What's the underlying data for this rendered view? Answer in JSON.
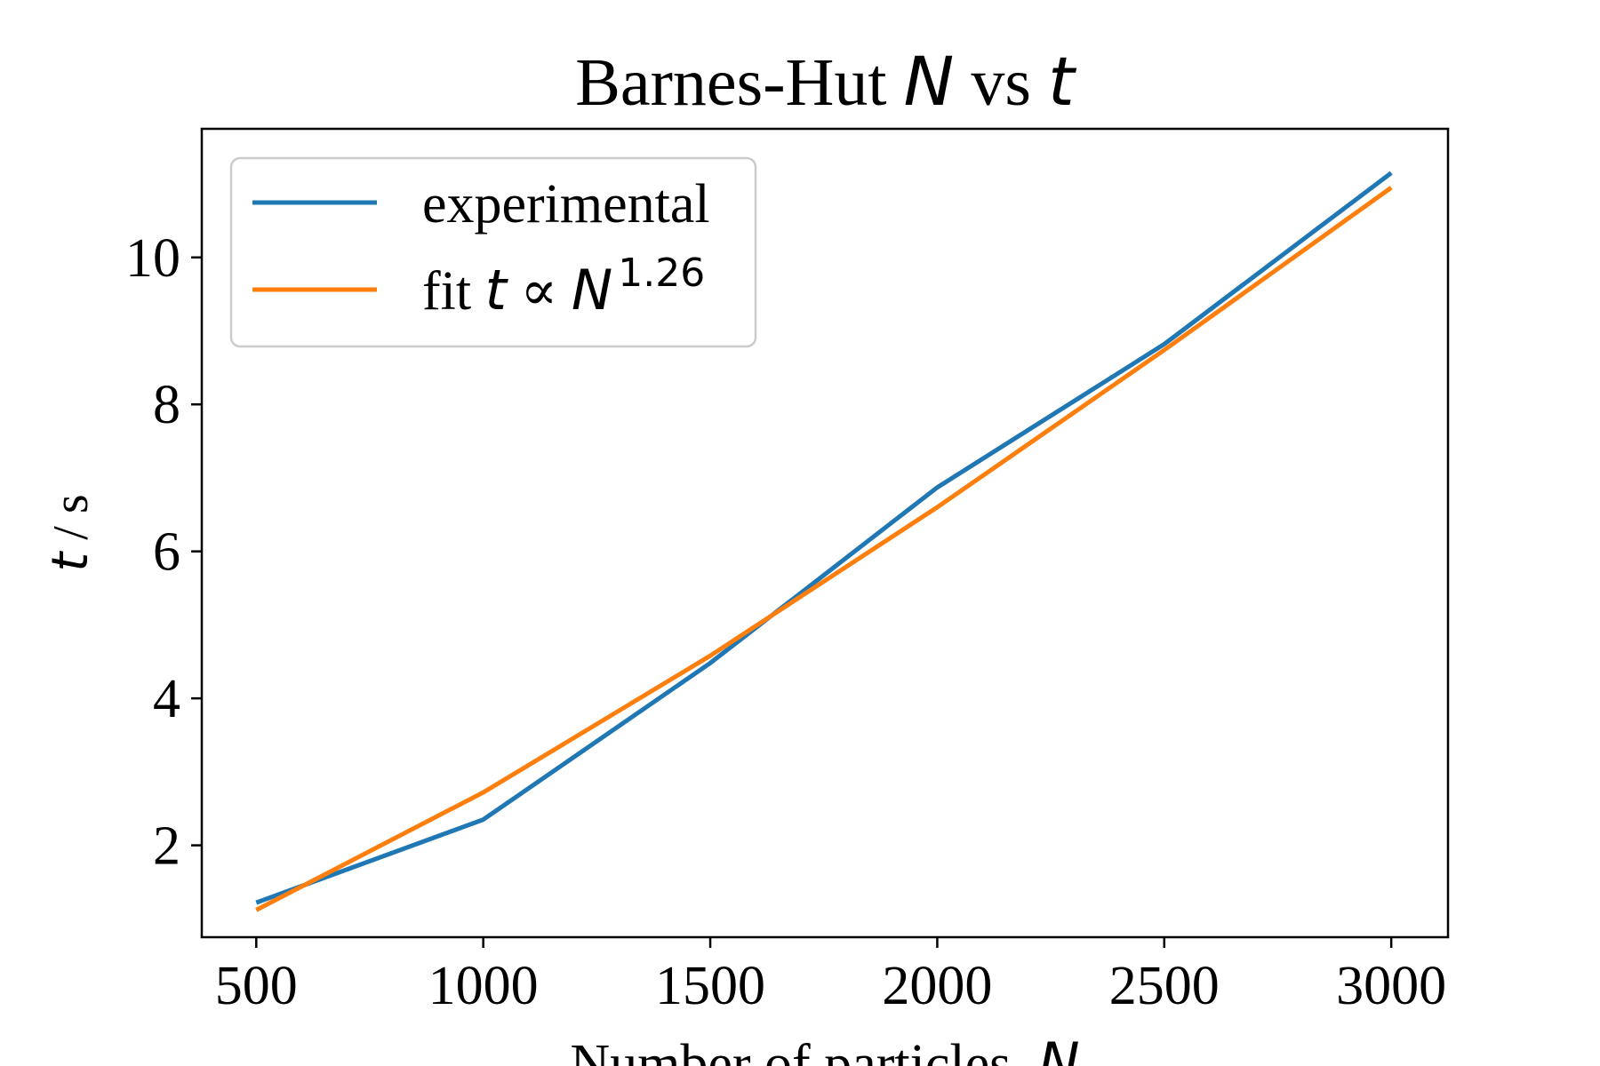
{
  "chart_data": {
    "type": "line",
    "title": {
      "prefix": "Barnes-Hut ",
      "sym1": "N",
      "mid": " vs ",
      "sym2": "t"
    },
    "xlabel": {
      "text": "Number of particles, ",
      "sym": "N"
    },
    "ylabel": {
      "sym": "t",
      "unit": " / s"
    },
    "xlim": [
      380,
      3125
    ],
    "ylim": [
      0.75,
      11.75
    ],
    "xticks": [
      "500",
      "1000",
      "1500",
      "2000",
      "2500",
      "3000"
    ],
    "yticks": [
      "2",
      "4",
      "6",
      "8",
      "10"
    ],
    "x": [
      500,
      1000,
      1500,
      2000,
      2500,
      3000
    ],
    "series": [
      {
        "name": "experimental",
        "values": [
          1.22,
          2.35,
          4.48,
          6.87,
          8.82,
          11.15
        ],
        "color": "#1f77b4"
      },
      {
        "name": "fit",
        "values": [
          1.12,
          2.72,
          4.58,
          6.6,
          8.74,
          10.95
        ],
        "color": "#ff7f0e"
      }
    ],
    "legend": {
      "position": "top-left",
      "entries": [
        {
          "label": "experimental"
        },
        {
          "prefix": "fit ",
          "sym1": "t",
          "mid": " ∝ ",
          "sym2": "N",
          "sup": "1.26"
        }
      ]
    },
    "grid": false
  }
}
